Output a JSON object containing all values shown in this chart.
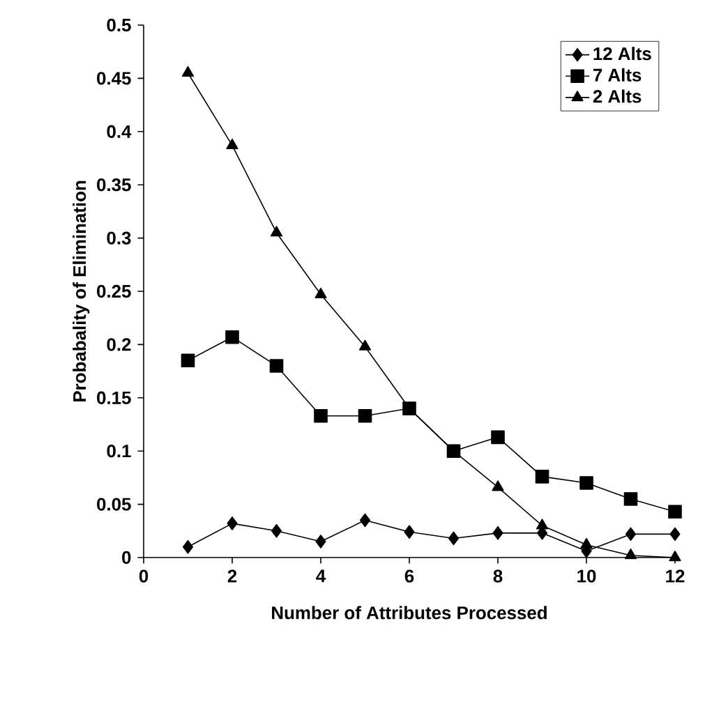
{
  "chart_data": {
    "type": "line",
    "xlabel": "Number of Attributes Processed",
    "ylabel": "Probabality of Elimination",
    "x": [
      1,
      2,
      3,
      4,
      5,
      6,
      7,
      8,
      9,
      10,
      11,
      12
    ],
    "series": [
      {
        "name": "12 Alts",
        "color": "#000000",
        "marker": "diamond",
        "values": [
          0.01,
          0.032,
          0.025,
          0.015,
          0.035,
          0.024,
          0.018,
          0.023,
          0.023,
          0.006,
          0.022,
          0.022
        ]
      },
      {
        "name": "7 Alts",
        "color": "#000000",
        "marker": "square",
        "values": [
          0.185,
          0.207,
          0.18,
          0.133,
          0.133,
          0.14,
          0.1,
          0.113,
          0.076,
          0.07,
          0.055,
          0.043
        ]
      },
      {
        "name": "2 Alts",
        "color": "#000000",
        "marker": "triangle",
        "values": [
          0.455,
          0.387,
          0.305,
          0.247,
          0.198,
          0.14,
          0.1,
          0.066,
          0.03,
          0.012,
          0.002,
          0.0
        ]
      }
    ],
    "xlim": [
      0,
      12
    ],
    "xticks": [
      0,
      2,
      4,
      6,
      8,
      10,
      12
    ],
    "ylim": [
      0,
      0.5
    ],
    "yticks": [
      0,
      0.05,
      0.1,
      0.15,
      0.2,
      0.25,
      0.3,
      0.35,
      0.4,
      0.45,
      0.5
    ],
    "grid": false,
    "legend": "top right",
    "line_style": "solid"
  }
}
